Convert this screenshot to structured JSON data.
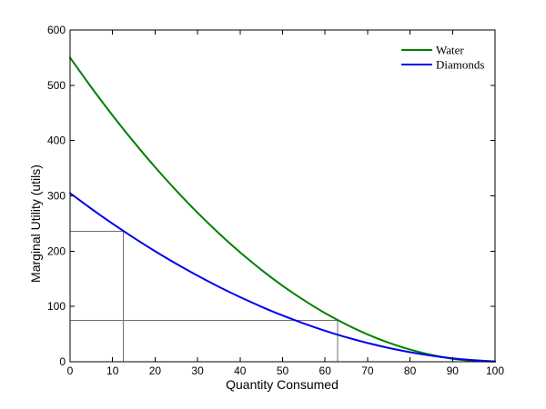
{
  "figure": {
    "background": "#ffffff",
    "frame_color": "#000000",
    "reference_line_color": "#707070"
  },
  "chart_data": {
    "type": "line",
    "title": "",
    "xlabel": "Quantity Consumed",
    "ylabel": "Marginal Utility (utils)",
    "xlim": [
      0,
      100
    ],
    "ylim": [
      0,
      600
    ],
    "x_ticks": [
      0,
      10,
      20,
      30,
      40,
      50,
      60,
      70,
      80,
      90,
      100
    ],
    "y_ticks": [
      0,
      100,
      200,
      300,
      400,
      500,
      600
    ],
    "grid": false,
    "legend": {
      "position": "upper-right",
      "frame": false
    },
    "x": [
      0,
      5,
      10,
      15,
      20,
      25,
      30,
      35,
      40,
      45,
      50,
      55,
      60,
      65,
      70,
      75,
      80,
      85,
      90,
      95,
      100
    ],
    "series": [
      {
        "name": "Water",
        "color": "#008000",
        "values": [
          550,
          496.4,
          445.5,
          397.4,
          352,
          309.4,
          269.5,
          232.4,
          198,
          166.4,
          137.5,
          111.4,
          88,
          67.4,
          49.5,
          34.4,
          22,
          12.4,
          5.5,
          1.4,
          0.3
        ]
      },
      {
        "name": "Diamonds",
        "color": "#0000ee",
        "values": [
          305,
          276.6,
          249.7,
          224.1,
          199.9,
          177.1,
          155.6,
          135.6,
          116.9,
          99.6,
          83.7,
          69.2,
          56,
          44.3,
          33.9,
          24.9,
          17.3,
          11.1,
          6.2,
          2.8,
          0.7
        ]
      }
    ],
    "reference_points": [
      {
        "series": "Diamonds",
        "x": 12.5,
        "y": 236
      },
      {
        "series": "Water",
        "x": 63,
        "y": 75
      }
    ]
  }
}
